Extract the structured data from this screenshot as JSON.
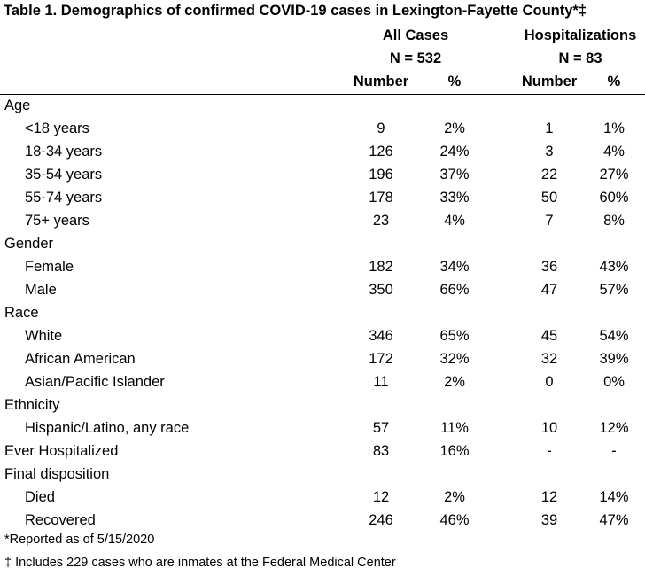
{
  "table": {
    "title": "Table 1. Demographics of confirmed COVID-19 cases in Lexington-Fayette County*‡",
    "groups": [
      {
        "label": "All Cases",
        "n_label": "N = 532"
      },
      {
        "label": "Hospitalizations",
        "n_label": "N = 83"
      }
    ],
    "col_number": "Number",
    "col_percent": "%",
    "rows": [
      {
        "label": "Age",
        "type": "section"
      },
      {
        "label": "<18 years",
        "type": "item",
        "values": [
          "9",
          "2%",
          "1",
          "1%"
        ]
      },
      {
        "label": "18-34 years",
        "type": "item",
        "values": [
          "126",
          "24%",
          "3",
          "4%"
        ]
      },
      {
        "label": "35-54 years",
        "type": "item",
        "values": [
          "196",
          "37%",
          "22",
          "27%"
        ]
      },
      {
        "label": "55-74 years",
        "type": "item",
        "values": [
          "178",
          "33%",
          "50",
          "60%"
        ]
      },
      {
        "label": "75+ years",
        "type": "item",
        "values": [
          "23",
          "4%",
          "7",
          "8%"
        ]
      },
      {
        "label": "Gender",
        "type": "section"
      },
      {
        "label": "Female",
        "type": "item",
        "values": [
          "182",
          "34%",
          "36",
          "43%"
        ]
      },
      {
        "label": "Male",
        "type": "item",
        "values": [
          "350",
          "66%",
          "47",
          "57%"
        ]
      },
      {
        "label": "Race",
        "type": "section"
      },
      {
        "label": "White",
        "type": "item",
        "values": [
          "346",
          "65%",
          "45",
          "54%"
        ]
      },
      {
        "label": "African American",
        "type": "item",
        "values": [
          "172",
          "32%",
          "32",
          "39%"
        ]
      },
      {
        "label": "Asian/Pacific Islander",
        "type": "item",
        "values": [
          "11",
          "2%",
          "0",
          "0%"
        ]
      },
      {
        "label": "Ethnicity",
        "type": "section"
      },
      {
        "label": "Hispanic/Latino, any race",
        "type": "item",
        "values": [
          "57",
          "11%",
          "10",
          "12%"
        ]
      },
      {
        "label": "Ever Hospitalized",
        "type": "section",
        "values": [
          "83",
          "16%",
          "-",
          "-"
        ]
      },
      {
        "label": "Final disposition",
        "type": "section"
      },
      {
        "label": "Died",
        "type": "item",
        "values": [
          "12",
          "2%",
          "12",
          "14%"
        ]
      },
      {
        "label": "Recovered",
        "type": "item",
        "values": [
          "246",
          "46%",
          "39",
          "47%"
        ]
      }
    ]
  },
  "footnotes": [
    "*Reported as of 5/15/2020",
    "‡ Includes 229 cases who are inmates at the Federal Medical Center"
  ]
}
